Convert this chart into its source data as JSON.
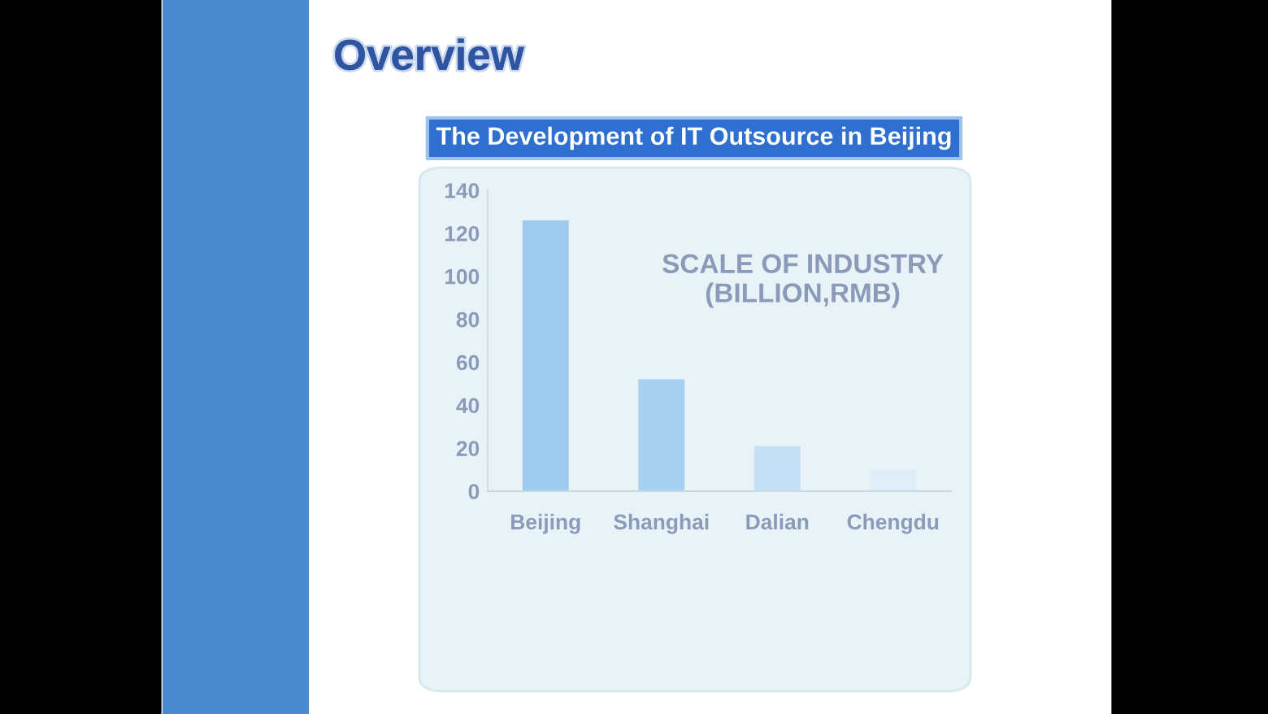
{
  "chart_data": {
    "type": "bar",
    "title": "Overview",
    "subtitle": "The Development of IT Outsource in Beijing",
    "categories": [
      "Beijing",
      "Shanghai",
      "Dalian",
      "Chengdu"
    ],
    "values": [
      126,
      52,
      21,
      10
    ],
    "colors": [
      "#9fcaf0",
      "#a8d0f0",
      "#c5e0f5",
      "#deedf8"
    ],
    "ylim": [
      0,
      140
    ],
    "yticks": [
      0,
      20,
      40,
      60,
      80,
      100,
      120,
      140
    ],
    "grid": false,
    "legend": false,
    "annotations": [
      "SCALE OF INDUSTRY\n(BILLION,RMB)"
    ]
  }
}
